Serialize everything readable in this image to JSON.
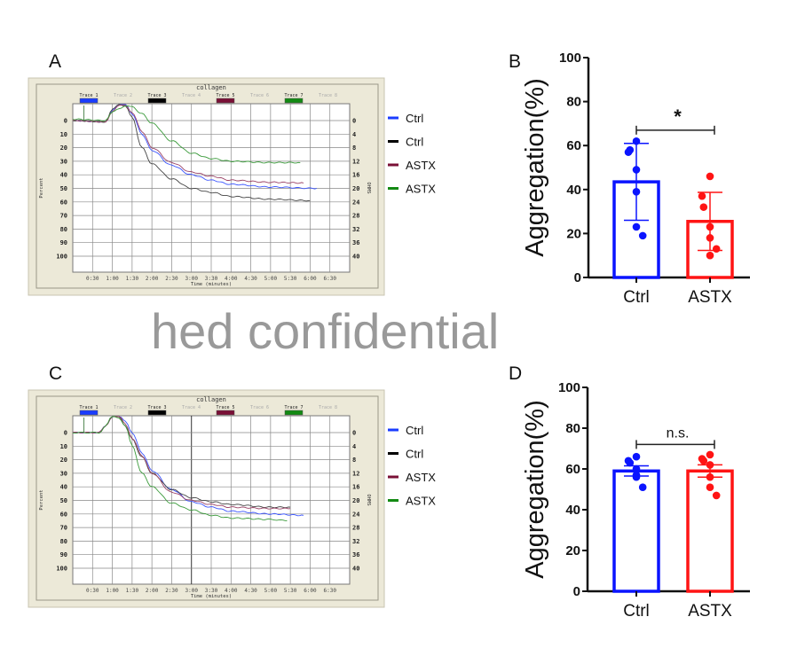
{
  "panel_labels": {
    "a": "A",
    "b": "B",
    "c": "C",
    "d": "D"
  },
  "watermark": "hed confidential",
  "chart_data": [
    {
      "type": "line",
      "panel": "A",
      "title": "collagen",
      "xlabel": "Time (minutes)",
      "ylabel": "Percent",
      "y2label": "OHMS",
      "xticks": [
        "0:30",
        "1:00",
        "1:30",
        "2:00",
        "2:30",
        "3:00",
        "3:30",
        "4:00",
        "4:30",
        "5:00",
        "5:30",
        "6:00",
        "6:30"
      ],
      "xlim_seconds": [
        0,
        420
      ],
      "yticks": [
        0,
        10,
        20,
        30,
        40,
        50,
        60,
        70,
        80,
        90,
        100
      ],
      "y2ticks": [
        0,
        4,
        8,
        12,
        16,
        20,
        24,
        28,
        32,
        36,
        40
      ],
      "ylim": [
        -12,
        112
      ],
      "y_inverted": true,
      "grid": true,
      "trace_headers": [
        "Trace 1",
        "Trace 2",
        "Trace 3",
        "Trace 4",
        "Trace 5",
        "Trace 6",
        "Trace 7",
        "Trace 8"
      ],
      "trace_colors": [
        "#1a3cff",
        "",
        "#000000",
        "",
        "#7a1036",
        "",
        "#138a13",
        ""
      ],
      "legend": [
        {
          "label": "Ctrl",
          "color": "#1a3cff"
        },
        {
          "label": "Ctrl",
          "color": "#000000"
        },
        {
          "label": "ASTX",
          "color": "#7a1036"
        },
        {
          "label": "ASTX",
          "color": "#138a13"
        }
      ],
      "series": [
        {
          "name": "Ctrl",
          "color": "#3b55ff",
          "points": [
            [
              0,
              0
            ],
            [
              50,
              1
            ],
            [
              60,
              -8
            ],
            [
              70,
              -12
            ],
            [
              80,
              -12
            ],
            [
              90,
              -5
            ],
            [
              105,
              10
            ],
            [
              120,
              22
            ],
            [
              150,
              33
            ],
            [
              180,
              40
            ],
            [
              210,
              44
            ],
            [
              240,
              47
            ],
            [
              300,
              49
            ],
            [
              370,
              50
            ]
          ]
        },
        {
          "name": "Ctrl",
          "color": "#444444",
          "points": [
            [
              0,
              0
            ],
            [
              50,
              1
            ],
            [
              60,
              -8
            ],
            [
              70,
              -12
            ],
            [
              80,
              -11
            ],
            [
              90,
              -2
            ],
            [
              105,
              20
            ],
            [
              120,
              32
            ],
            [
              150,
              43
            ],
            [
              180,
              50
            ],
            [
              210,
              53
            ],
            [
              240,
              56
            ],
            [
              300,
              58
            ],
            [
              360,
              59
            ]
          ]
        },
        {
          "name": "ASTX",
          "color": "#9a4266",
          "points": [
            [
              0,
              0
            ],
            [
              50,
              1
            ],
            [
              60,
              -7
            ],
            [
              70,
              -11
            ],
            [
              80,
              -11
            ],
            [
              90,
              -6
            ],
            [
              105,
              8
            ],
            [
              120,
              20
            ],
            [
              150,
              31
            ],
            [
              180,
              38
            ],
            [
              210,
              41
            ],
            [
              240,
              44
            ],
            [
              300,
              45.5
            ],
            [
              350,
              46
            ]
          ]
        },
        {
          "name": "ASTX",
          "color": "#3a9a3a",
          "points": [
            [
              0,
              -1
            ],
            [
              50,
              0
            ],
            [
              60,
              -6
            ],
            [
              70,
              -9
            ],
            [
              80,
              -11
            ],
            [
              90,
              -10
            ],
            [
              105,
              -5
            ],
            [
              120,
              2
            ],
            [
              150,
              15
            ],
            [
              180,
              24
            ],
            [
              210,
              28
            ],
            [
              240,
              30
            ],
            [
              300,
              31
            ],
            [
              345,
              31
            ]
          ]
        }
      ]
    },
    {
      "type": "bar",
      "panel": "B",
      "categories": [
        "Ctrl",
        "ASTX"
      ],
      "colors": [
        "#0a14ff",
        "#ff1414"
      ],
      "values": [
        43.5,
        25.5
      ],
      "sd": [
        17.5,
        13.2
      ],
      "points": [
        [
          62,
          57,
          58,
          49,
          39,
          23,
          19
        ],
        [
          46,
          37,
          32,
          23,
          18,
          10,
          13
        ]
      ],
      "ylabel": "Aggregation(%)",
      "ylim": [
        0,
        100
      ],
      "yticks": [
        0,
        20,
        40,
        60,
        80,
        100
      ],
      "significance": "*"
    },
    {
      "type": "line",
      "panel": "C",
      "title": "collagen",
      "xlabel": "Time (minutes)",
      "ylabel": "Percent",
      "y2label": "OHMS",
      "xticks": [
        "0:30",
        "1:00",
        "1:30",
        "2:00",
        "2:30",
        "3:00",
        "3:30",
        "4:00",
        "4:30",
        "5:00",
        "5:30",
        "6:00",
        "6:30"
      ],
      "xlim_seconds": [
        0,
        420
      ],
      "yticks": [
        0,
        10,
        20,
        30,
        40,
        50,
        60,
        70,
        80,
        90,
        100
      ],
      "y2ticks": [
        0,
        4,
        8,
        12,
        16,
        20,
        24,
        28,
        32,
        36,
        40
      ],
      "ylim": [
        -12,
        112
      ],
      "y_inverted": true,
      "grid": true,
      "trace_headers": [
        "Trace 1",
        "Trace 2",
        "Trace 3",
        "Trace 4",
        "Trace 5",
        "Trace 6",
        "Trace 7",
        "Trace 8"
      ],
      "trace_colors": [
        "#1a3cff",
        "",
        "#000000",
        "",
        "#7a1036",
        "",
        "#138a13",
        ""
      ],
      "legend": [
        {
          "label": "Ctrl",
          "color": "#1a3cff"
        },
        {
          "label": "Ctrl",
          "color": "#000000"
        },
        {
          "label": "ASTX",
          "color": "#7a1036"
        },
        {
          "label": "ASTX",
          "color": "#138a13"
        }
      ],
      "series": [
        {
          "name": "Ctrl",
          "color": "#3b55ff",
          "points": [
            [
              0,
              0
            ],
            [
              40,
              0
            ],
            [
              50,
              -5
            ],
            [
              60,
              -12
            ],
            [
              70,
              -12
            ],
            [
              80,
              -8
            ],
            [
              90,
              0
            ],
            [
              105,
              15
            ],
            [
              120,
              28
            ],
            [
              150,
              42
            ],
            [
              180,
              51
            ],
            [
              210,
              55
            ],
            [
              240,
              58
            ],
            [
              300,
              60
            ],
            [
              350,
              61
            ]
          ]
        },
        {
          "name": "Ctrl",
          "color": "#444444",
          "points": [
            [
              0,
              0
            ],
            [
              40,
              0
            ],
            [
              50,
              -5
            ],
            [
              60,
              -12
            ],
            [
              70,
              -12
            ],
            [
              80,
              -5
            ],
            [
              90,
              5
            ],
            [
              105,
              18
            ],
            [
              120,
              30
            ],
            [
              150,
              42
            ],
            [
              180,
              48
            ],
            [
              210,
              51
            ],
            [
              240,
              53
            ],
            [
              300,
              55
            ],
            [
              330,
              55
            ]
          ]
        },
        {
          "name": "ASTX",
          "color": "#9a4266",
          "points": [
            [
              0,
              0
            ],
            [
              40,
              0
            ],
            [
              50,
              -5
            ],
            [
              60,
              -12
            ],
            [
              70,
              -12
            ],
            [
              80,
              -6
            ],
            [
              90,
              4
            ],
            [
              105,
              17
            ],
            [
              120,
              30
            ],
            [
              150,
              44
            ],
            [
              180,
              50
            ],
            [
              210,
              53
            ],
            [
              240,
              55
            ],
            [
              300,
              56
            ],
            [
              330,
              56
            ]
          ]
        },
        {
          "name": "ASTX",
          "color": "#3a9a3a",
          "points": [
            [
              0,
              0
            ],
            [
              40,
              0
            ],
            [
              50,
              -5
            ],
            [
              60,
              -12
            ],
            [
              70,
              -11
            ],
            [
              80,
              -5
            ],
            [
              90,
              10
            ],
            [
              105,
              30
            ],
            [
              120,
              40
            ],
            [
              150,
              52
            ],
            [
              180,
              57
            ],
            [
              210,
              61
            ],
            [
              240,
              63
            ],
            [
              300,
              64
            ],
            [
              325,
              65
            ]
          ]
        }
      ]
    },
    {
      "type": "bar",
      "panel": "D",
      "categories": [
        "Ctrl",
        "ASTX"
      ],
      "colors": [
        "#0a14ff",
        "#ff1414"
      ],
      "values": [
        59,
        59
      ],
      "sd": [
        2.5,
        3
      ],
      "points": [
        [
          66,
          64,
          63,
          60,
          57,
          56,
          51
        ],
        [
          67,
          65,
          64,
          62,
          56,
          51,
          47
        ]
      ],
      "ylabel": "Aggregation(%)",
      "ylim": [
        0,
        100
      ],
      "yticks": [
        0,
        20,
        40,
        60,
        80,
        100
      ],
      "significance": "n.s."
    }
  ]
}
